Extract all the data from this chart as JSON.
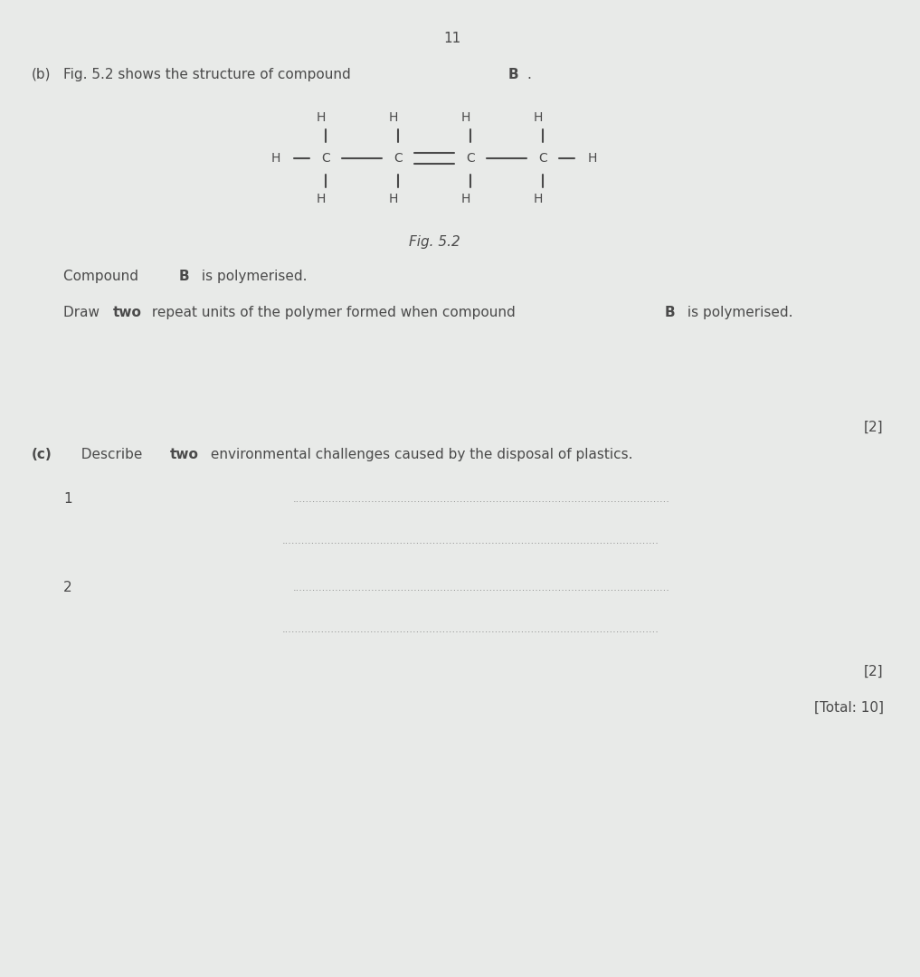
{
  "page_number": "11",
  "bg_color": "#e8eae8",
  "text_color": "#4a4a4a",
  "part_b_label": "(b)",
  "part_b_text_normal": "  Fig. 5.2 shows the structure of compound ",
  "part_b_bold": "B",
  "part_b_text_end": ".",
  "fig_caption": "Fig. 5.2",
  "compound_b_text1": "Compound ",
  "compound_b_bold": "B",
  "compound_b_text2": " is polymerised.",
  "draw_instruction_normal": "Draw ",
  "draw_instruction_bold": "two",
  "draw_instruction_rest": " repeat units of the polymer formed when compound ",
  "draw_instruction_bold2": "B",
  "draw_instruction_end": " is polymerised.",
  "marks_b": "[2]",
  "part_c_label": "(c)",
  "part_c_text_normal": "  Describe ",
  "part_c_bold": "two",
  "part_c_text_end": " environmental challenges caused by the disposal of plastics.",
  "line1_label": "1",
  "line2_label": "2",
  "marks_c": "[2]",
  "total": "[Total: 10]",
  "dot_color": "#888888",
  "line_color": "#888888"
}
